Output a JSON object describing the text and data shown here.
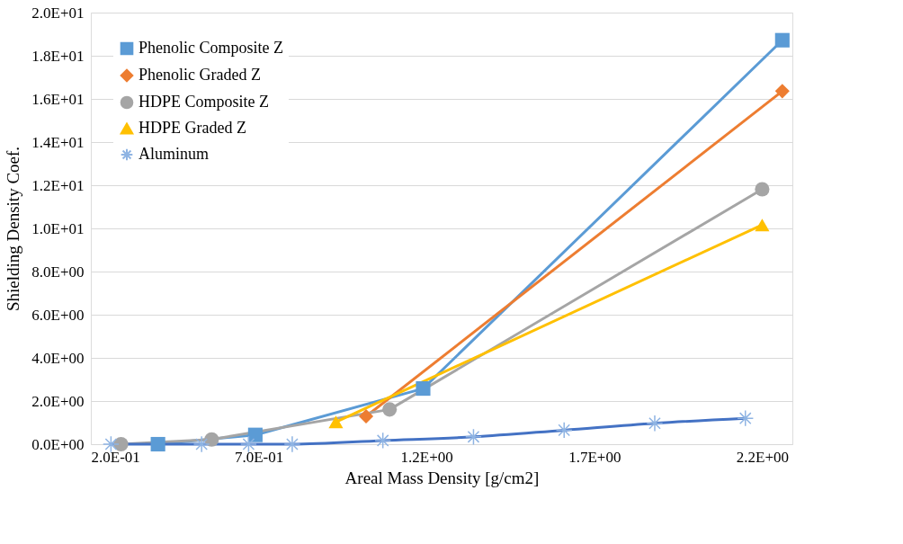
{
  "chart_data": {
    "type": "line",
    "xlabel": "Areal Mass Density [g/cm2]",
    "ylabel": "Shielding Density Coef.",
    "xlim": [
      0.2,
      2.29
    ],
    "ylim": [
      0,
      20
    ],
    "xticks": [
      {
        "value": 0.2,
        "label": "2.0E-01"
      },
      {
        "value": 0.7,
        "label": "7.0E-01"
      },
      {
        "value": 1.2,
        "label": "1.2E+00"
      },
      {
        "value": 1.7,
        "label": "1.7E+00"
      },
      {
        "value": 2.2,
        "label": "2.2E+00"
      }
    ],
    "yticks": [
      {
        "value": 0,
        "label": "0.0E+00"
      },
      {
        "value": 2,
        "label": "2.0E+00"
      },
      {
        "value": 4,
        "label": "4.0E+00"
      },
      {
        "value": 6,
        "label": "6.0E+00"
      },
      {
        "value": 8,
        "label": "8.0E+00"
      },
      {
        "value": 10,
        "label": "1.0E+01"
      },
      {
        "value": 12,
        "label": "1.2E+01"
      },
      {
        "value": 14,
        "label": "1.4E+01"
      },
      {
        "value": 16,
        "label": "1.6E+01"
      },
      {
        "value": 18,
        "label": "1.8E+01"
      },
      {
        "value": 20,
        "label": "2.0E+01"
      }
    ],
    "grid": "y",
    "legend": "top left",
    "series": [
      {
        "name": "Phenolic Composite Z",
        "color": "#5b9bd5",
        "marker": "square",
        "x": [
          0.4,
          0.69,
          1.19,
          2.26
        ],
        "values": [
          0.0,
          0.43,
          2.58,
          18.72
        ]
      },
      {
        "name": "Phenolic Graded Z",
        "color": "#ed7d31",
        "marker": "diamond",
        "x": [
          1.02,
          2.26
        ],
        "values": [
          1.29,
          16.36
        ]
      },
      {
        "name": "HDPE Composite Z",
        "color": "#a5a5a5",
        "marker": "circle",
        "x": [
          0.29,
          0.56,
          1.09,
          2.2
        ],
        "values": [
          0.0,
          0.22,
          1.61,
          11.81
        ]
      },
      {
        "name": "HDPE Graded Z",
        "color": "#ffc000",
        "marker": "triangle",
        "x": [
          0.93,
          2.2
        ],
        "values": [
          1.03,
          10.16
        ]
      },
      {
        "name": "Aluminum",
        "color": "#4472c4",
        "marker": "cross",
        "x": [
          0.26,
          0.53,
          0.67,
          0.8,
          1.07,
          1.34,
          1.61,
          1.88,
          2.15
        ],
        "values": [
          0.0,
          0.0,
          0.0,
          0.0,
          0.17,
          0.34,
          0.65,
          0.97,
          1.2
        ]
      }
    ]
  }
}
